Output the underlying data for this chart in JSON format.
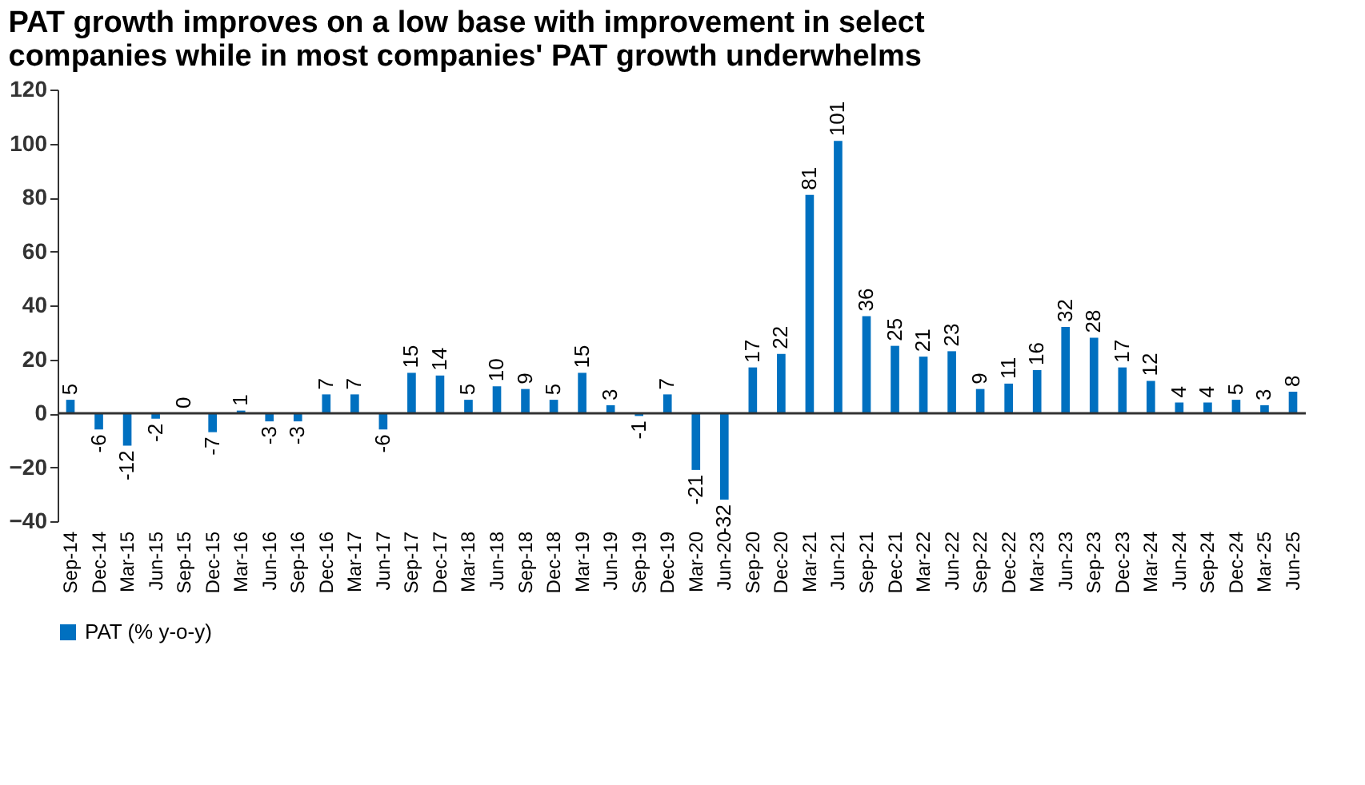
{
  "chart_data": {
    "type": "bar",
    "title": [
      "PAT growth improves on a low base with improvement in select",
      "companies while in most companies' PAT growth underwhelms"
    ],
    "categories": [
      "Sep-14",
      "Dec-14",
      "Mar-15",
      "Jun-15",
      "Sep-15",
      "Dec-15",
      "Mar-16",
      "Jun-16",
      "Sep-16",
      "Dec-16",
      "Mar-17",
      "Jun-17",
      "Sep-17",
      "Dec-17",
      "Mar-18",
      "Jun-18",
      "Sep-18",
      "Dec-18",
      "Mar-19",
      "Jun-19",
      "Sep-19",
      "Dec-19",
      "Mar-20",
      "Jun-20",
      "Sep-20",
      "Dec-20",
      "Mar-21",
      "Jun-21",
      "Sep-21",
      "Dec-21",
      "Mar-22",
      "Jun-22",
      "Sep-22",
      "Dec-22",
      "Mar-23",
      "Jun-23",
      "Sep-23",
      "Dec-23",
      "Mar-24",
      "Jun-24",
      "Sep-24",
      "Dec-24",
      "Mar-25",
      "Jun-25"
    ],
    "series": [
      {
        "name": "PAT (% y-o-y)",
        "color": "#0070c0",
        "values": [
          5,
          -6,
          -12,
          -2,
          0,
          -7,
          1,
          -3,
          -3,
          7,
          7,
          -6,
          15,
          14,
          5,
          10,
          9,
          5,
          15,
          3,
          -1,
          7,
          -21,
          -32,
          17,
          22,
          81,
          101,
          36,
          25,
          21,
          23,
          9,
          11,
          16,
          32,
          28,
          17,
          12,
          4,
          4,
          5,
          3,
          8
        ]
      }
    ],
    "ylim": [
      -40,
      120
    ],
    "yticks": [
      -40,
      -20,
      0,
      20,
      40,
      60,
      80,
      100,
      120
    ],
    "data_labels": true,
    "legend": "bottom"
  }
}
